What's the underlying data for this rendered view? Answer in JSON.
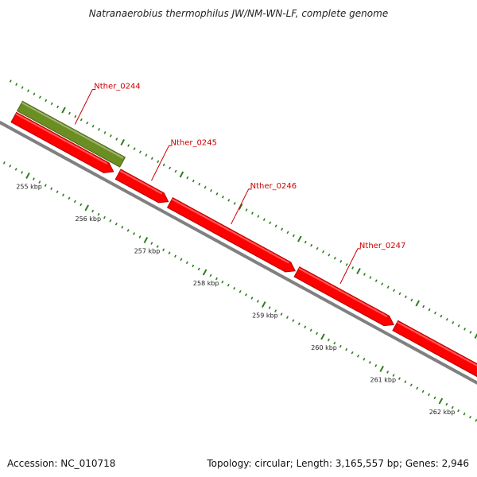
{
  "title": "Natranaerobius thermophilus JW/NM-WN-LF, complete genome",
  "footer": {
    "accession": "Accession: NC_010718",
    "summary": "Topology: circular; Length: 3,165,557 bp; Genes: 2,946"
  },
  "colors": {
    "forward_gene": "#ff0000",
    "forward_gene_shade": "#b30000",
    "rna_gene": "#6b8e23",
    "rna_gene_shade": "#4b6416",
    "backbone": "#808080",
    "tick": "#2e7d1e",
    "gene_label": "#cc0000"
  },
  "scale": {
    "unit": "kbp",
    "start_kbp": 254.4,
    "end_kbp": 262.5
  },
  "ticks": [
    {
      "kbp": 255,
      "label": "255 kbp"
    },
    {
      "kbp": 256,
      "label": "256 kbp"
    },
    {
      "kbp": 257,
      "label": "257 kbp"
    },
    {
      "kbp": 258,
      "label": "258 kbp"
    },
    {
      "kbp": 259,
      "label": "259 kbp"
    },
    {
      "kbp": 260,
      "label": "260 kbp"
    },
    {
      "kbp": 261,
      "label": "261 kbp"
    },
    {
      "kbp": 262,
      "label": "262 kbp"
    }
  ],
  "genes": [
    {
      "name": "Nther_0244",
      "start_kbp": 254.4,
      "end_kbp": 256.17,
      "type": "rna",
      "label_anchor_kbp": 255.25
    },
    {
      "name": "",
      "start_kbp": 254.4,
      "end_kbp": 256.12,
      "type": "forward"
    },
    {
      "name": "Nther_0245",
      "start_kbp": 256.17,
      "end_kbp": 257.05,
      "type": "forward",
      "label_anchor_kbp": 256.65
    },
    {
      "name": "Nther_0246",
      "start_kbp": 257.05,
      "end_kbp": 259.2,
      "type": "forward",
      "label_anchor_kbp": 258.0
    },
    {
      "name": "Nther_0247",
      "start_kbp": 259.2,
      "end_kbp": 260.87,
      "type": "forward",
      "label_anchor_kbp": 259.85
    },
    {
      "name": "",
      "start_kbp": 260.87,
      "end_kbp": 262.5,
      "type": "forward"
    }
  ]
}
